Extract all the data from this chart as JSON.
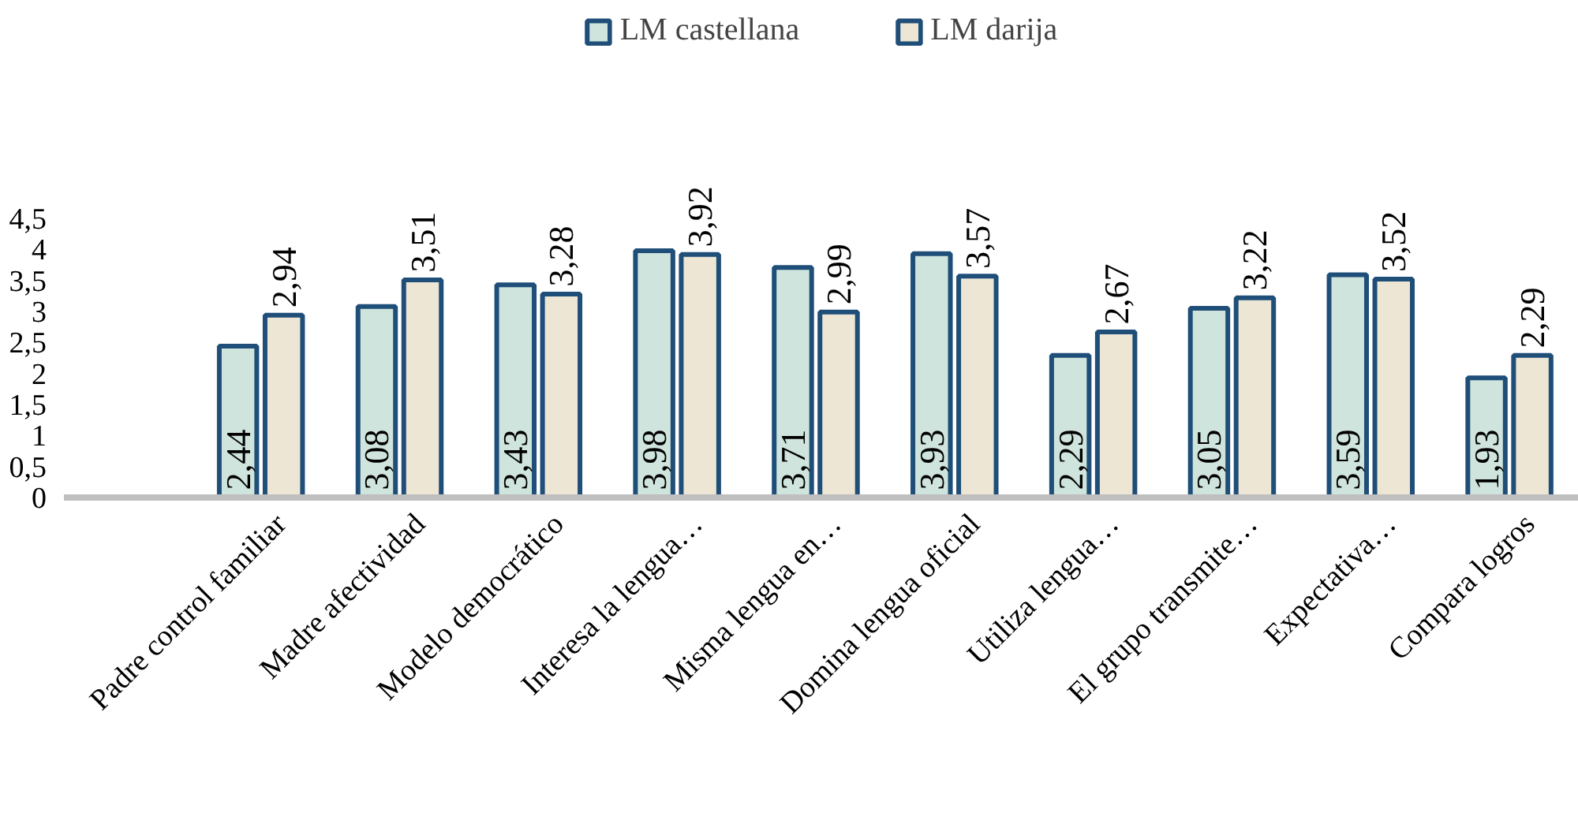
{
  "chart_data": {
    "type": "bar",
    "categories": [
      "Padre control familiar",
      "Madre afectividad",
      "Modelo democrático",
      "Interesa la lengua…",
      "Misma lengua en…",
      "Domina lengua oficial",
      "Utiliza lengua…",
      "El grupo transmite…",
      "Expectativa…",
      "Compara logros"
    ],
    "series": [
      {
        "name": "LM castellana",
        "color": "#cfe4dc",
        "values": [
          2.44,
          3.08,
          3.43,
          3.98,
          3.71,
          3.93,
          2.29,
          3.05,
          3.59,
          1.93
        ],
        "value_labels": [
          "2,44",
          "3,08",
          "3,43",
          "3,98",
          "3,71",
          "3,93",
          "2,29",
          "3,05",
          "3,59",
          "1,93"
        ]
      },
      {
        "name": "LM darija",
        "color": "#ede6d4",
        "values": [
          2.94,
          3.51,
          3.28,
          3.92,
          2.99,
          3.57,
          2.67,
          3.22,
          3.52,
          2.29
        ],
        "value_labels": [
          "2,94",
          "3,51",
          "3,28",
          "3,92",
          "2,99",
          "3,57",
          "2,67",
          "3,22",
          "3,52",
          "2,29"
        ]
      }
    ],
    "ylim": [
      0,
      4.5
    ],
    "yticks": [
      0,
      {
        "value": 0.5,
        "label": "0,5"
      },
      1,
      {
        "value": 1.5,
        "label": "1,5"
      },
      2,
      {
        "value": 2.5,
        "label": "2,5"
      },
      3,
      {
        "value": 3.5,
        "label": "3,5"
      },
      4,
      {
        "value": 4.5,
        "label": "4,5"
      }
    ],
    "grid": false,
    "legend": "top"
  }
}
